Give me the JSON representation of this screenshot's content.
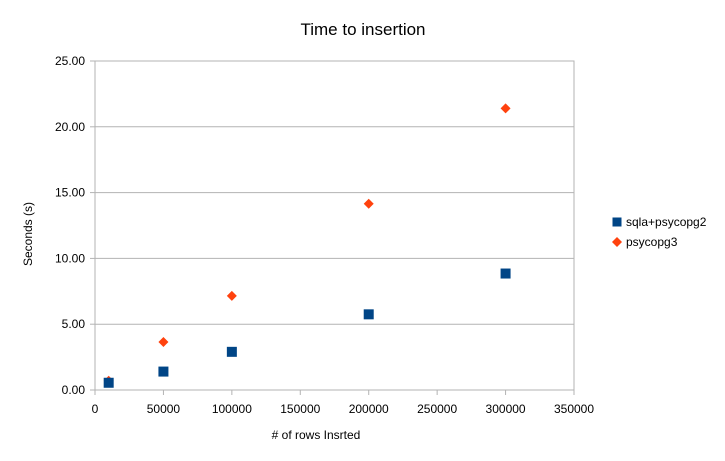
{
  "chart_data": {
    "type": "scatter",
    "title": "Time to insertion",
    "xlabel": "# of rows Insrted",
    "ylabel": "Seconds (s)",
    "xlim": [
      0,
      350000
    ],
    "ylim": [
      0,
      25
    ],
    "xticks": [
      0,
      50000,
      100000,
      150000,
      200000,
      250000,
      300000,
      350000
    ],
    "xtick_labels": [
      "0",
      "50000",
      "100000",
      "150000",
      "200000",
      "250000",
      "300000",
      "350000"
    ],
    "yticks": [
      0,
      5,
      10,
      15,
      20,
      25
    ],
    "ytick_labels": [
      "0.00",
      "5.00",
      "10.00",
      "15.00",
      "20.00",
      "25.00"
    ],
    "grid": "horizontal",
    "legend_position": "right",
    "series": [
      {
        "name": "sqla+psycopg2",
        "marker": "square",
        "color": "#004586",
        "x": [
          10000,
          50000,
          100000,
          200000,
          300000
        ],
        "y": [
          0.55,
          1.4,
          2.9,
          5.75,
          8.85
        ]
      },
      {
        "name": "psycopg3",
        "marker": "diamond",
        "color": "#ff420e",
        "x": [
          10000,
          50000,
          100000,
          200000,
          300000
        ],
        "y": [
          0.7,
          3.65,
          7.15,
          14.15,
          21.4
        ]
      }
    ]
  }
}
